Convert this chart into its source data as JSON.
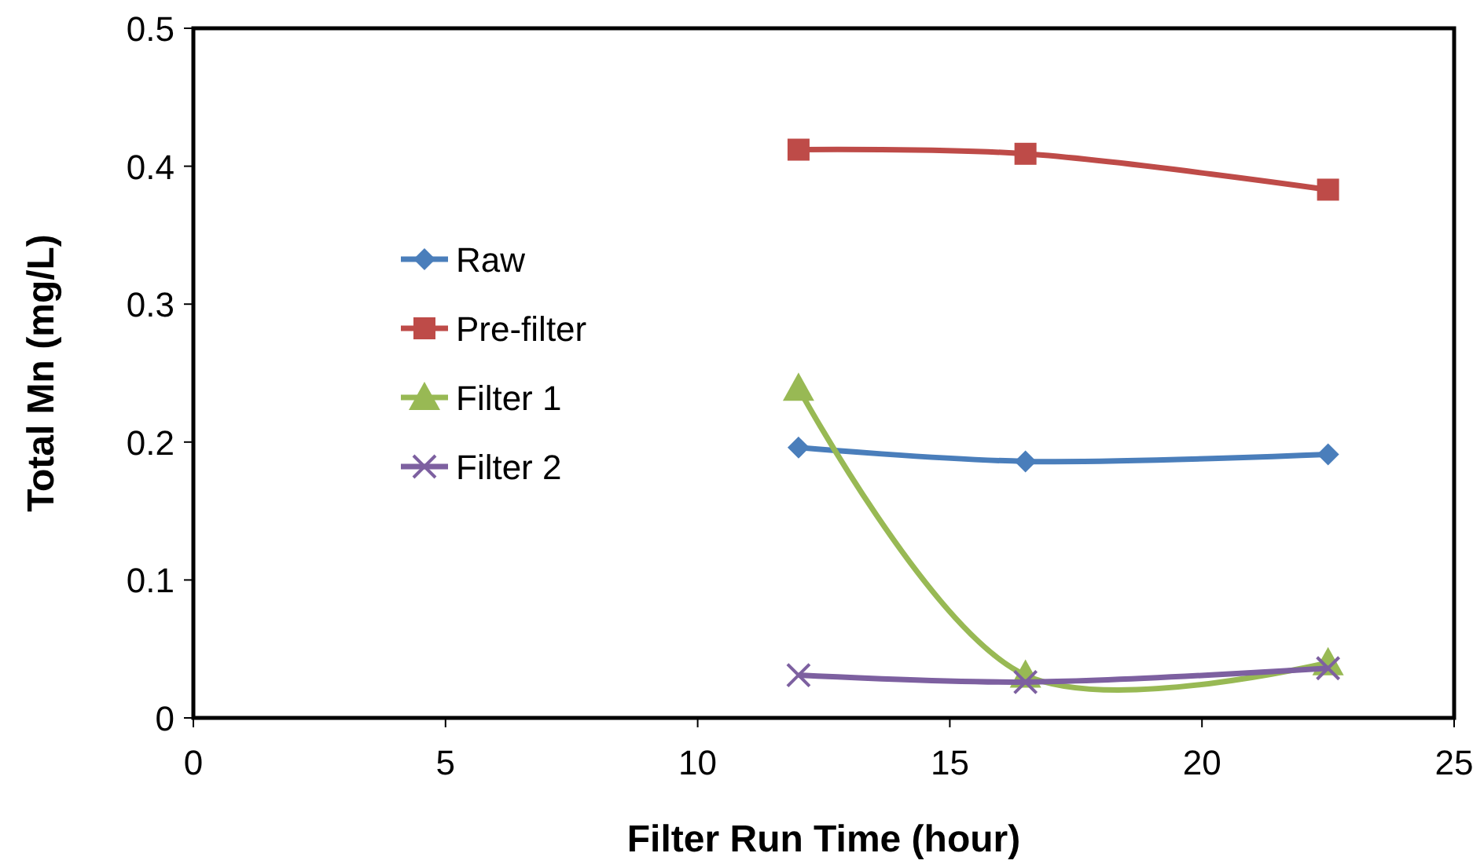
{
  "chart_data": {
    "type": "line",
    "xlabel": "Filter Run Time (hour)",
    "ylabel": "Total Mn (mg/L)",
    "x": [
      12,
      16.5,
      22.5
    ],
    "series": [
      {
        "name": "Raw",
        "color": "#4a7ebb",
        "marker": "diamond",
        "values": [
          0.196,
          0.186,
          0.191
        ]
      },
      {
        "name": "Pre-filter",
        "color": "#be4b48",
        "marker": "square",
        "values": [
          0.412,
          0.409,
          0.383
        ]
      },
      {
        "name": "Filter 1",
        "color": "#98b954",
        "marker": "triangle",
        "values": [
          0.239,
          0.031,
          0.04
        ]
      },
      {
        "name": "Filter 2",
        "color": "#7d60a0",
        "marker": "cross",
        "values": [
          0.031,
          0.026,
          0.036
        ]
      }
    ],
    "xlim": [
      0,
      25
    ],
    "xticks": [
      0,
      5,
      10,
      15,
      20,
      25
    ],
    "ylim": [
      0,
      0.5
    ],
    "yticks": [
      0,
      0.1,
      0.2,
      0.3,
      0.4,
      0.5
    ],
    "grid": false,
    "legend": "left",
    "line_style": "solid"
  }
}
